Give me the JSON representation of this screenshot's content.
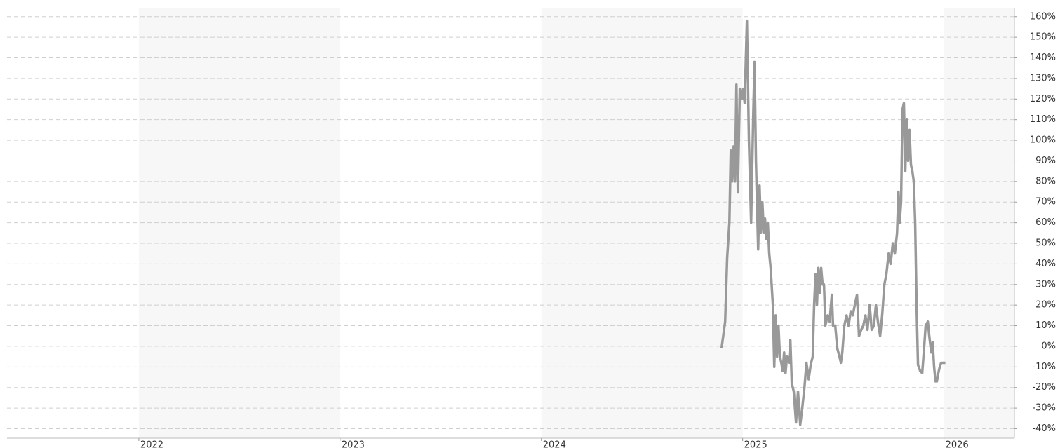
{
  "chart_data": {
    "type": "line",
    "x": [
      2024.895,
      2024.913,
      2024.923,
      2024.934,
      2024.941,
      2024.948,
      2024.955,
      2024.962,
      2024.969,
      2024.976,
      2024.986,
      2024.997,
      2025.003,
      2025.01,
      2025.021,
      2025.031,
      2025.042,
      2025.052,
      2025.059,
      2025.066,
      2025.077,
      2025.084,
      2025.091,
      2025.098,
      2025.105,
      2025.111,
      2025.118,
      2025.125,
      2025.132,
      2025.139,
      2025.15,
      2025.157,
      2025.164,
      2025.171,
      2025.178,
      2025.185,
      2025.192,
      2025.199,
      2025.206,
      2025.213,
      2025.22,
      2025.23,
      2025.237,
      2025.244,
      2025.254,
      2025.265,
      2025.275,
      2025.286,
      2025.296,
      2025.307,
      2025.317,
      2025.328,
      2025.338,
      2025.348,
      2025.355,
      2025.362,
      2025.369,
      2025.376,
      2025.383,
      2025.39,
      2025.397,
      2025.404,
      2025.411,
      2025.422,
      2025.432,
      2025.443,
      2025.449,
      2025.46,
      2025.47,
      2025.481,
      2025.488,
      2025.495,
      2025.505,
      2025.516,
      2025.526,
      2025.537,
      2025.547,
      2025.557,
      2025.568,
      2025.578,
      2025.589,
      2025.599,
      2025.61,
      2025.62,
      2025.631,
      2025.641,
      2025.652,
      2025.662,
      2025.672,
      2025.683,
      2025.693,
      2025.704,
      2025.714,
      2025.725,
      2025.735,
      2025.746,
      2025.756,
      2025.767,
      2025.774,
      2025.78,
      2025.787,
      2025.794,
      2025.801,
      2025.808,
      2025.815,
      2025.822,
      2025.829,
      2025.836,
      2025.843,
      2025.85,
      2025.857,
      2025.864,
      2025.871,
      2025.882,
      2025.892,
      2025.902,
      2025.909,
      2025.92,
      2025.927,
      2025.937,
      2025.944,
      2025.951,
      2025.958,
      2025.965,
      2025.972,
      2025.979,
      2025.986,
      2025.997,
      2026.007
    ],
    "series": [
      {
        "color": "#999999",
        "values": [
          -1,
          12,
          43,
          60,
          95,
          80,
          97,
          80,
          127,
          75,
          125,
          120,
          125,
          118,
          158,
          100,
          60,
          110,
          138,
          90,
          47,
          78,
          55,
          70,
          55,
          62,
          52,
          60,
          45,
          38,
          20,
          -10,
          15,
          -5,
          10,
          -5,
          -8,
          -12,
          -3,
          -13,
          -5,
          -8,
          3,
          -18,
          -22,
          -37,
          -22,
          -38,
          -30,
          -20,
          -8,
          -16,
          -9,
          -5,
          20,
          35,
          20,
          38,
          26,
          38,
          30,
          30,
          10,
          15,
          12,
          25,
          10,
          10,
          -1,
          -5,
          -8,
          -3,
          10,
          15,
          10,
          17,
          15,
          20,
          25,
          5,
          8,
          10,
          15,
          8,
          20,
          8,
          10,
          20,
          12,
          5,
          15,
          30,
          35,
          45,
          40,
          50,
          45,
          55,
          75,
          60,
          70,
          115,
          118,
          85,
          110,
          90,
          105,
          88,
          85,
          80,
          60,
          20,
          -9,
          -12,
          -13,
          0,
          10,
          12,
          5,
          -3,
          2,
          -10,
          -17,
          -17,
          -13,
          -10,
          -8,
          -8,
          -8
        ]
      }
    ],
    "xlim": [
      2021.345,
      2026.35
    ],
    "xticks": [
      2022,
      2023,
      2024,
      2025,
      2026
    ],
    "ylim": [
      -44.6,
      164
    ],
    "yticks": [
      {
        "value": 160,
        "label": "160%"
      },
      {
        "value": 150,
        "label": "150%"
      },
      {
        "value": 140,
        "label": "140%"
      },
      {
        "value": 130,
        "label": "130%"
      },
      {
        "value": 120,
        "label": "120%"
      },
      {
        "value": 110,
        "label": "110%"
      },
      {
        "value": 100,
        "label": "100%"
      },
      {
        "value": 90,
        "label": "90%"
      },
      {
        "value": 80,
        "label": "80%"
      },
      {
        "value": 70,
        "label": "70%"
      },
      {
        "value": 60,
        "label": "60%"
      },
      {
        "value": 50,
        "label": "50%"
      },
      {
        "value": 40,
        "label": "40%"
      },
      {
        "value": 30,
        "label": "30%"
      },
      {
        "value": 20,
        "label": "20%"
      },
      {
        "value": 10,
        "label": "10%"
      },
      {
        "value": 0,
        "label": "0%"
      },
      {
        "value": -10,
        "label": "-10%"
      },
      {
        "value": -20,
        "label": "-20%"
      },
      {
        "value": -30,
        "label": "-30%"
      },
      {
        "value": -40,
        "label": "-40%"
      }
    ],
    "grid": true
  }
}
